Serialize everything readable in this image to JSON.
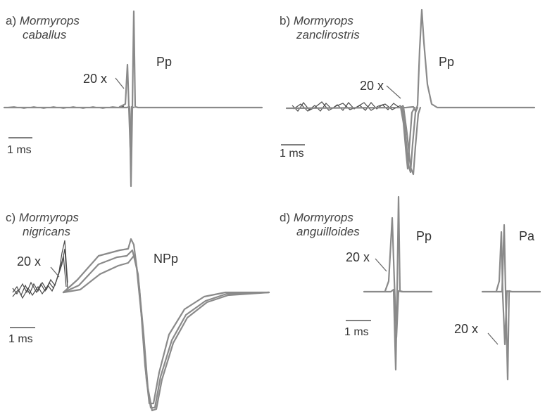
{
  "panels": {
    "a": {
      "letter": "a)",
      "species_line1": "Mormyrops",
      "species_line2": "caballus",
      "pulse_label": "Pp",
      "gain_label": "20 x",
      "scale_label": "1 ms"
    },
    "b": {
      "letter": "b)",
      "species_line1": "Mormyrops",
      "species_line2": "zanclirostris",
      "pulse_label": "Pp",
      "gain_label": "20 x",
      "scale_label": "1 ms"
    },
    "c": {
      "letter": "c)",
      "species_line1": "Mormyrops",
      "species_line2": "nigricans",
      "pulse_label": "NPp",
      "gain_label": "20 x",
      "scale_label": "1 ms"
    },
    "d": {
      "letter": "d)",
      "species_line1": "Mormyrops",
      "species_line2": "anguilloides",
      "pulse_label_left": "Pp",
      "pulse_label_right": "Pa",
      "gain_label_left": "20 x",
      "gain_label_right": "20 x",
      "scale_label": "1 ms"
    }
  },
  "colors": {
    "trace": "#8a8a8a",
    "noise": "#4a4a4a",
    "text": "#333333"
  }
}
